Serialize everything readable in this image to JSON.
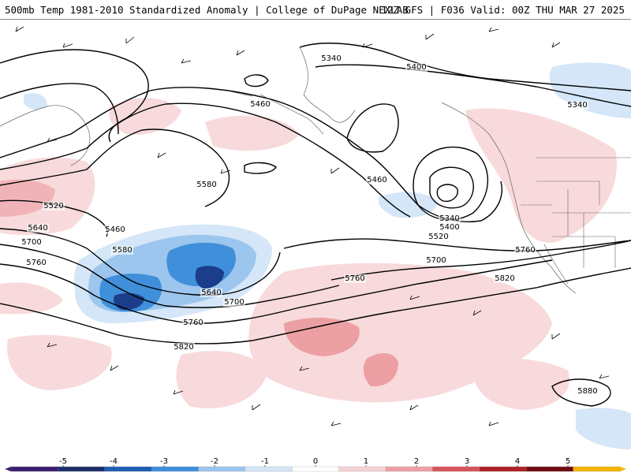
{
  "header": {
    "title_left": "500mb Temp 1981-2010 Standardized Anomaly | College of DuPage NEXLAB",
    "title_right": "12Z GFS | F036 Valid: 00Z THU MAR 27 2025"
  },
  "contours": {
    "labels": [
      "5340",
      "5400",
      "5460",
      "5340",
      "5580",
      "5460",
      "5520",
      "5640",
      "5700",
      "5760",
      "5460",
      "5580",
      "5640",
      "5700",
      "5760",
      "5820",
      "5340",
      "5400",
      "5520",
      "5700",
      "5760",
      "5760",
      "5820",
      "5880"
    ]
  },
  "legend": {
    "ticks": [
      "-5",
      "-4",
      "-3",
      "-2",
      "-1",
      "0",
      "1",
      "2",
      "3",
      "4",
      "5"
    ],
    "colors": [
      "#3b1d6e",
      "#1c2f6a",
      "#1e5fb5",
      "#3f8fda",
      "#9cc6ee",
      "#d4e6f7",
      "#ffffff",
      "#f6d2d4",
      "#eca0a4",
      "#d8545b",
      "#b02027",
      "#6e0c12",
      "#f5b400"
    ]
  },
  "colors": {
    "anom_neg_1": "#d4e6f7",
    "anom_neg_2": "#9cc6ee",
    "anom_neg_3": "#3f8fda",
    "anom_neg_4": "#1c3d8a",
    "anom_pos_1": "#f8dadc",
    "anom_pos_2": "#eca0a4",
    "contour": "#000000"
  },
  "icons": [
    "wind-barb-icon",
    "state-border-icon"
  ]
}
